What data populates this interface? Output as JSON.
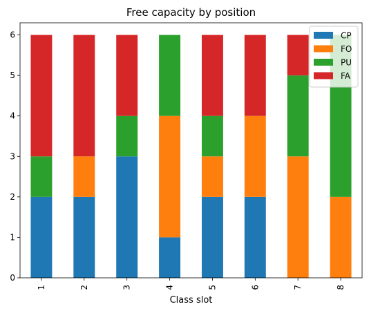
{
  "chart_data": {
    "type": "bar",
    "stacked": true,
    "title": "Free capacity by position",
    "xlabel": "Class slot",
    "ylabel": "",
    "categories": [
      "1",
      "2",
      "3",
      "4",
      "5",
      "6",
      "7",
      "8"
    ],
    "ylim": [
      0,
      6.3
    ],
    "yticks": [
      "0",
      "1",
      "2",
      "3",
      "4",
      "5",
      "6"
    ],
    "legend_placement": "top-right",
    "series": [
      {
        "name": "CP",
        "color": "#1f77b4",
        "values": [
          2,
          2,
          3,
          1,
          2,
          2,
          0,
          0
        ]
      },
      {
        "name": "FO",
        "color": "#ff7f0e",
        "values": [
          0,
          1,
          0,
          3,
          1,
          2,
          3,
          2
        ]
      },
      {
        "name": "PU",
        "color": "#2ca02c",
        "values": [
          1,
          0,
          1,
          2,
          1,
          0,
          2,
          4
        ]
      },
      {
        "name": "FA",
        "color": "#d62728",
        "values": [
          3,
          3,
          2,
          0,
          2,
          2,
          1,
          0
        ]
      }
    ]
  }
}
